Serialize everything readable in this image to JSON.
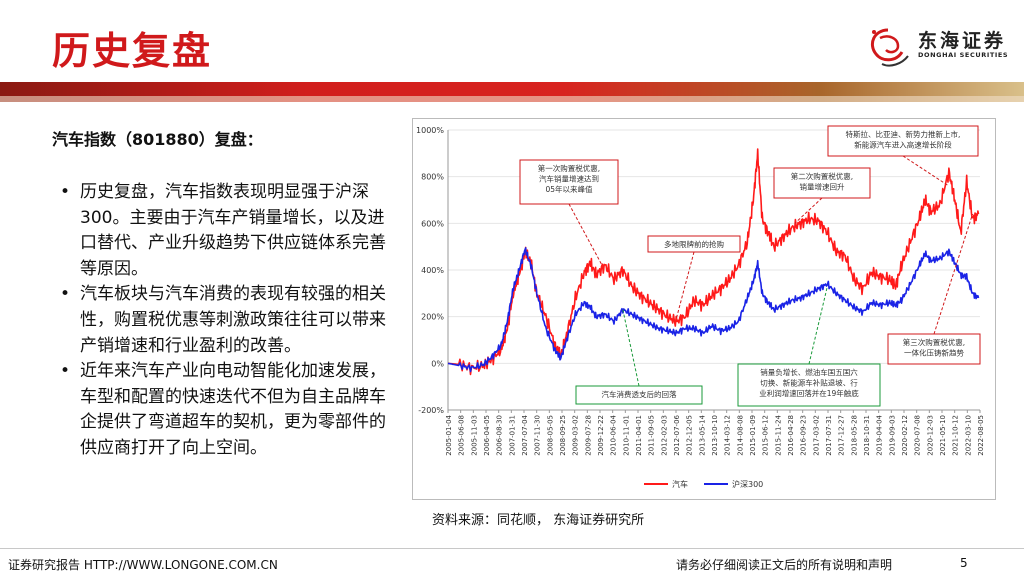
{
  "slide": {
    "title": "历史复盘",
    "logo_name": "东海证券",
    "logo_en": "DONGHAI SECURITIES",
    "subheading": "汽车指数（801880）复盘：",
    "bullets": [
      "历史复盘，汽车指数表现明显强于沪深300。主要由于汽车产销量增长，以及进口替代、产业升级趋势下供应链体系完善等原因。",
      "汽车板块与汽车消费的表现有较强的相关性，购置税优惠等刺激政策往往可以带来产销增速和行业盈利的改善。",
      "近年来汽车产业向电动智能化加速发展，车型和配置的快速迭代不但为自主品牌车企提供了弯道超车的契机，更为零部件的供应商打开了向上空间。"
    ],
    "source": "资料来源：同花顺，  东海证券研究所",
    "footer_left": "证券研究报告 HTTP://WWW.LONGONE.COM.CN",
    "footer_right": "请务必仔细阅读正文后的所有说明和声明",
    "page_number": "5"
  },
  "colors": {
    "brand_red": "#d0191b",
    "auto_series": "#ff1a1a",
    "hs300_series": "#1a23e6"
  },
  "chart_data": {
    "type": "line",
    "title": "",
    "xlabel": "",
    "ylabel": "",
    "ylim": [
      -200,
      1000
    ],
    "y_ticks": [
      -200,
      0,
      200,
      400,
      600,
      800,
      1000
    ],
    "y_tick_labels": [
      "-200%",
      "0%",
      "200%",
      "400%",
      "600%",
      "800%",
      "1000%"
    ],
    "grid": true,
    "legend_position": "bottom",
    "x_tick_labels": [
      "2005-01-04",
      "2005-06-08",
      "2005-11-03",
      "2006-04-05",
      "2006-08-30",
      "2007-01-31",
      "2007-07-04",
      "2007-11-30",
      "2008-05-05",
      "2008-09-25",
      "2009-03-02",
      "2009-07-28",
      "2009-12-22",
      "2010-06-04",
      "2010-11-01",
      "2011-04-01",
      "2011-09-05",
      "2012-02-03",
      "2012-07-06",
      "2012-12-05",
      "2013-05-14",
      "2013-10-10",
      "2014-03-12",
      "2014-08-08",
      "2015-01-09",
      "2015-06-12",
      "2015-11-24",
      "2016-04-28",
      "2016-09-23",
      "2017-03-02",
      "2017-07-31",
      "2017-12-27",
      "2018-05-28",
      "2018-10-31",
      "2019-04-04",
      "2019-09-03",
      "2020-02-12",
      "2020-07-08",
      "2020-12-03",
      "2021-05-10",
      "2021-10-12",
      "2022-03-10",
      "2022-08-05"
    ],
    "series": [
      {
        "name": "汽车",
        "x": [
          2005.0,
          2005.4,
          2005.8,
          2006.2,
          2006.5,
          2006.8,
          2007.0,
          2007.2,
          2007.4,
          2007.6,
          2007.8,
          2008.0,
          2008.3,
          2008.6,
          2008.8,
          2009.0,
          2009.3,
          2009.6,
          2009.8,
          2010.0,
          2010.3,
          2010.6,
          2010.9,
          2011.2,
          2011.5,
          2011.8,
          2012.1,
          2012.4,
          2012.7,
          2013.0,
          2013.3,
          2013.6,
          2013.9,
          2014.2,
          2014.5,
          2014.8,
          2015.1,
          2015.3,
          2015.45,
          2015.6,
          2015.8,
          2016.0,
          2016.3,
          2016.6,
          2016.9,
          2017.2,
          2017.5,
          2017.8,
          2018.1,
          2018.4,
          2018.7,
          2019.0,
          2019.3,
          2019.6,
          2019.9,
          2020.1,
          2020.3,
          2020.6,
          2020.9,
          2021.1,
          2021.3,
          2021.6,
          2021.9,
          2022.1,
          2022.3,
          2022.5,
          2022.7,
          2022.9
        ],
        "values": [
          0,
          -5,
          -20,
          -10,
          20,
          60,
          150,
          300,
          380,
          480,
          430,
          300,
          200,
          80,
          30,
          120,
          280,
          390,
          430,
          380,
          420,
          360,
          400,
          330,
          290,
          260,
          230,
          200,
          180,
          200,
          270,
          250,
          290,
          320,
          360,
          420,
          520,
          700,
          900,
          620,
          560,
          500,
          540,
          580,
          600,
          620,
          610,
          560,
          480,
          460,
          360,
          320,
          390,
          370,
          360,
          330,
          420,
          520,
          620,
          700,
          650,
          680,
          820,
          700,
          560,
          780,
          620,
          640
        ]
      },
      {
        "name": "沪深300",
        "x": [
          2005.0,
          2005.4,
          2005.8,
          2006.2,
          2006.5,
          2006.8,
          2007.0,
          2007.2,
          2007.4,
          2007.6,
          2007.8,
          2008.0,
          2008.3,
          2008.6,
          2008.8,
          2009.0,
          2009.3,
          2009.6,
          2009.8,
          2010.0,
          2010.3,
          2010.6,
          2010.9,
          2011.2,
          2011.5,
          2011.8,
          2012.1,
          2012.4,
          2012.7,
          2013.0,
          2013.3,
          2013.6,
          2013.9,
          2014.2,
          2014.5,
          2014.8,
          2015.1,
          2015.3,
          2015.45,
          2015.6,
          2015.8,
          2016.0,
          2016.3,
          2016.6,
          2016.9,
          2017.2,
          2017.5,
          2017.8,
          2018.1,
          2018.4,
          2018.7,
          2019.0,
          2019.3,
          2019.6,
          2019.9,
          2020.1,
          2020.3,
          2020.6,
          2020.9,
          2021.1,
          2021.3,
          2021.6,
          2021.9,
          2022.1,
          2022.3,
          2022.5,
          2022.7,
          2022.9
        ],
        "values": [
          0,
          -10,
          -20,
          -5,
          30,
          80,
          180,
          320,
          400,
          490,
          420,
          300,
          150,
          60,
          20,
          100,
          210,
          260,
          240,
          200,
          210,
          180,
          230,
          210,
          190,
          170,
          150,
          140,
          130,
          150,
          150,
          130,
          160,
          140,
          150,
          180,
          280,
          350,
          430,
          300,
          260,
          230,
          250,
          270,
          280,
          300,
          320,
          340,
          300,
          270,
          240,
          220,
          260,
          250,
          260,
          250,
          270,
          340,
          420,
          470,
          440,
          450,
          480,
          430,
          380,
          370,
          300,
          280
        ]
      }
    ],
    "annotations": [
      {
        "lines": [
          "第一次购置税优惠,",
          "汽车销量增速达到",
          "05年以来峰值"
        ]
      },
      {
        "lines": [
          "多地限牌前的抢购"
        ]
      },
      {
        "lines": [
          "第二次购置税优惠,",
          "销量增速回升"
        ]
      },
      {
        "lines": [
          "特斯拉、比亚迪、新势力推新上市,",
          "新能源汽车进入高速增长阶段"
        ]
      },
      {
        "lines": [
          "第三次购置税优惠,",
          "一体化压铸新趋势"
        ]
      },
      {
        "lines": [
          "汽车消费透支后的回落"
        ]
      },
      {
        "lines": [
          "销量负增长、燃油车国五国六",
          "切换、新能源车补贴退坡、行",
          "业利润增速回落并在19年触底"
        ]
      }
    ]
  }
}
